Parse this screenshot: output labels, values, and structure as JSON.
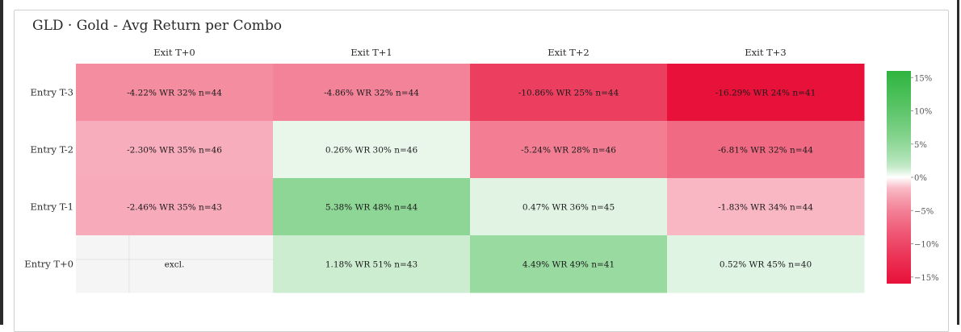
{
  "chart_data": {
    "type": "heatmap",
    "title": "GLD · Gold - Avg Return per Combo",
    "x_labels": [
      "Exit T+0",
      "Exit T+1",
      "Exit T+2",
      "Exit T+3"
    ],
    "y_labels": [
      "Entry T-3",
      "Entry T-2",
      "Entry T-1",
      "Entry T+0"
    ],
    "cells": [
      [
        {
          "value": -4.22,
          "label": "-4.22% WR 32% n=44"
        },
        {
          "value": -4.86,
          "label": "-4.86% WR 32% n=44"
        },
        {
          "value": -10.86,
          "label": "-10.86% WR 25% n=44"
        },
        {
          "value": -16.29,
          "label": "-16.29% WR 24% n=41"
        }
      ],
      [
        {
          "value": -2.3,
          "label": "-2.30% WR 35% n=46"
        },
        {
          "value": 0.26,
          "label": "0.26% WR 30% n=46"
        },
        {
          "value": -5.24,
          "label": "-5.24% WR 28% n=46"
        },
        {
          "value": -6.81,
          "label": "-6.81% WR 32% n=44"
        }
      ],
      [
        {
          "value": -2.46,
          "label": "-2.46% WR 35% n=43"
        },
        {
          "value": 5.38,
          "label": "5.38% WR 48% n=44"
        },
        {
          "value": 0.47,
          "label": "0.47% WR 36% n=45"
        },
        {
          "value": -1.83,
          "label": "-1.83% WR 34% n=44"
        }
      ],
      [
        {
          "value": null,
          "label": "excl."
        },
        {
          "value": 1.18,
          "label": "1.18% WR 51% n=43"
        },
        {
          "value": 4.49,
          "label": "4.49% WR 49% n=41"
        },
        {
          "value": 0.52,
          "label": "0.52% WR 45% n=40"
        }
      ]
    ],
    "colorscale": {
      "min": -16,
      "max": 16,
      "negative_color": "#e8113a",
      "zero_color": "#ffffff",
      "positive_color": "#2fb53f",
      "ticks": [
        "15%",
        "10%",
        "5%",
        "0%",
        "−5%",
        "−10%",
        "−15%"
      ],
      "tick_values": [
        15,
        10,
        5,
        0,
        -5,
        -10,
        -15
      ]
    },
    "excluded_cell_color": "#f5f5f5"
  }
}
